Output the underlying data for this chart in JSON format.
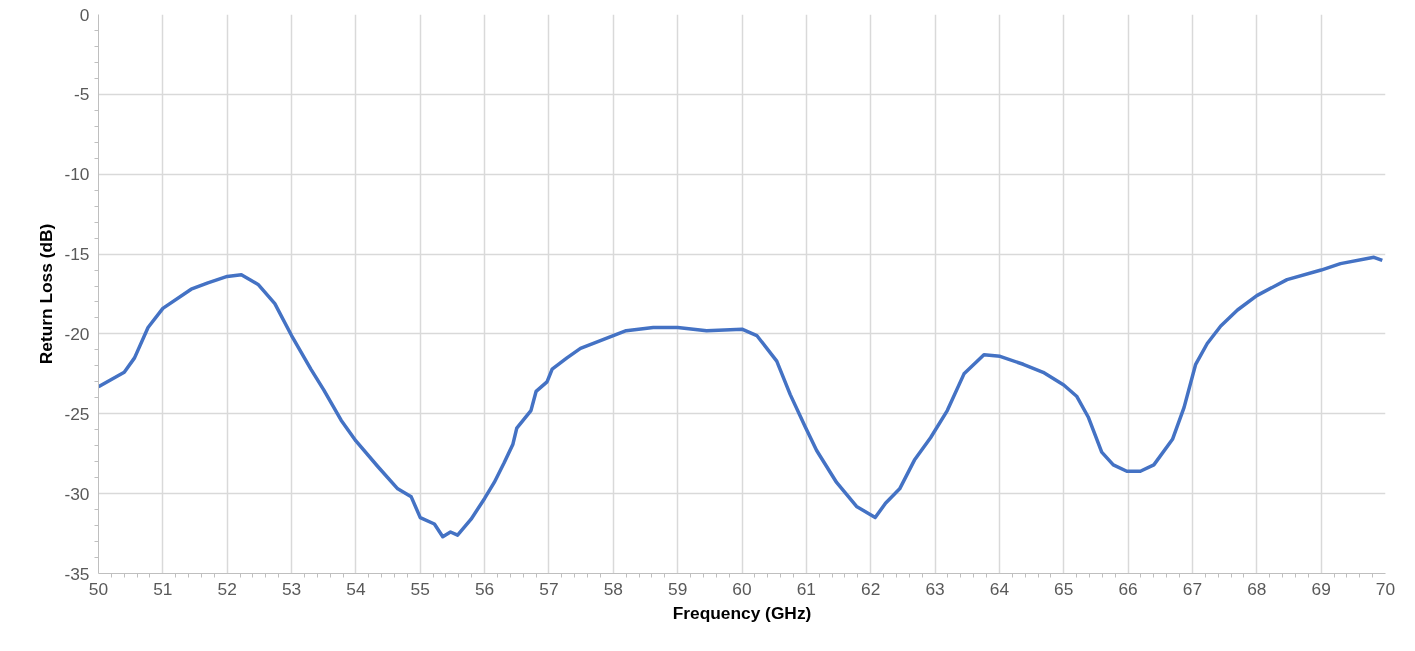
{
  "chart_data": {
    "type": "line",
    "xlabel": "Frequency (GHz)",
    "ylabel": "Return Loss (dB)",
    "xlim": [
      50,
      70
    ],
    "xticks": [
      50,
      51,
      52,
      53,
      54,
      55,
      56,
      57,
      58,
      59,
      60,
      61,
      62,
      63,
      64,
      65,
      66,
      67,
      68,
      69,
      70
    ],
    "ylim": [
      -35,
      0
    ],
    "yticks": [
      -35,
      -30,
      -25,
      -20,
      -15,
      -10,
      -5,
      0
    ],
    "grid": true,
    "marker": "none",
    "line_style": "solid",
    "series": [
      {
        "color": "#4472c4",
        "x": [
          50.0,
          50.4,
          50.56,
          50.77,
          51.0,
          51.44,
          51.7,
          52.0,
          52.22,
          52.48,
          52.74,
          53.0,
          53.3,
          53.5,
          53.77,
          54.0,
          54.34,
          54.65,
          54.86,
          55.0,
          55.22,
          55.35,
          55.47,
          55.58,
          55.79,
          56.0,
          56.15,
          56.3,
          56.44,
          56.5,
          56.72,
          56.8,
          56.97,
          57.05,
          57.28,
          57.49,
          58.0,
          58.2,
          58.62,
          59.0,
          59.45,
          60.0,
          60.23,
          60.54,
          60.75,
          60.98,
          61.16,
          61.47,
          61.78,
          62.07,
          62.23,
          62.45,
          62.68,
          62.93,
          63.19,
          63.45,
          63.76,
          64.01,
          64.37,
          64.68,
          65.0,
          65.2,
          65.38,
          65.59,
          65.77,
          65.98,
          66.19,
          66.4,
          66.69,
          66.87,
          67.05,
          67.23,
          67.44,
          67.7,
          68.0,
          68.47,
          69.0,
          69.3,
          69.82,
          69.95
        ],
        "values": [
          -23.3,
          -22.4,
          -21.5,
          -19.6,
          -18.4,
          -17.2,
          -16.8,
          -16.4,
          -16.3,
          -16.9,
          -18.1,
          -20.1,
          -22.2,
          -23.5,
          -25.4,
          -26.7,
          -28.3,
          -29.7,
          -30.2,
          -31.5,
          -31.9,
          -32.7,
          -32.4,
          -32.6,
          -31.6,
          -30.3,
          -29.3,
          -28.1,
          -26.9,
          -25.9,
          -24.8,
          -23.6,
          -23.0,
          -22.2,
          -21.5,
          -20.9,
          -20.1,
          -19.8,
          -19.6,
          -19.6,
          -19.8,
          -19.7,
          -20.1,
          -21.7,
          -23.8,
          -25.8,
          -27.3,
          -29.3,
          -30.8,
          -31.5,
          -30.6,
          -29.7,
          -27.9,
          -26.5,
          -24.8,
          -22.5,
          -21.3,
          -21.4,
          -21.9,
          -22.4,
          -23.2,
          -23.9,
          -25.2,
          -27.4,
          -28.2,
          -28.6,
          -28.6,
          -28.2,
          -26.6,
          -24.6,
          -21.9,
          -20.6,
          -19.5,
          -18.5,
          -17.6,
          -16.6,
          -16.0,
          -15.6,
          -15.2,
          -15.4
        ]
      }
    ]
  }
}
